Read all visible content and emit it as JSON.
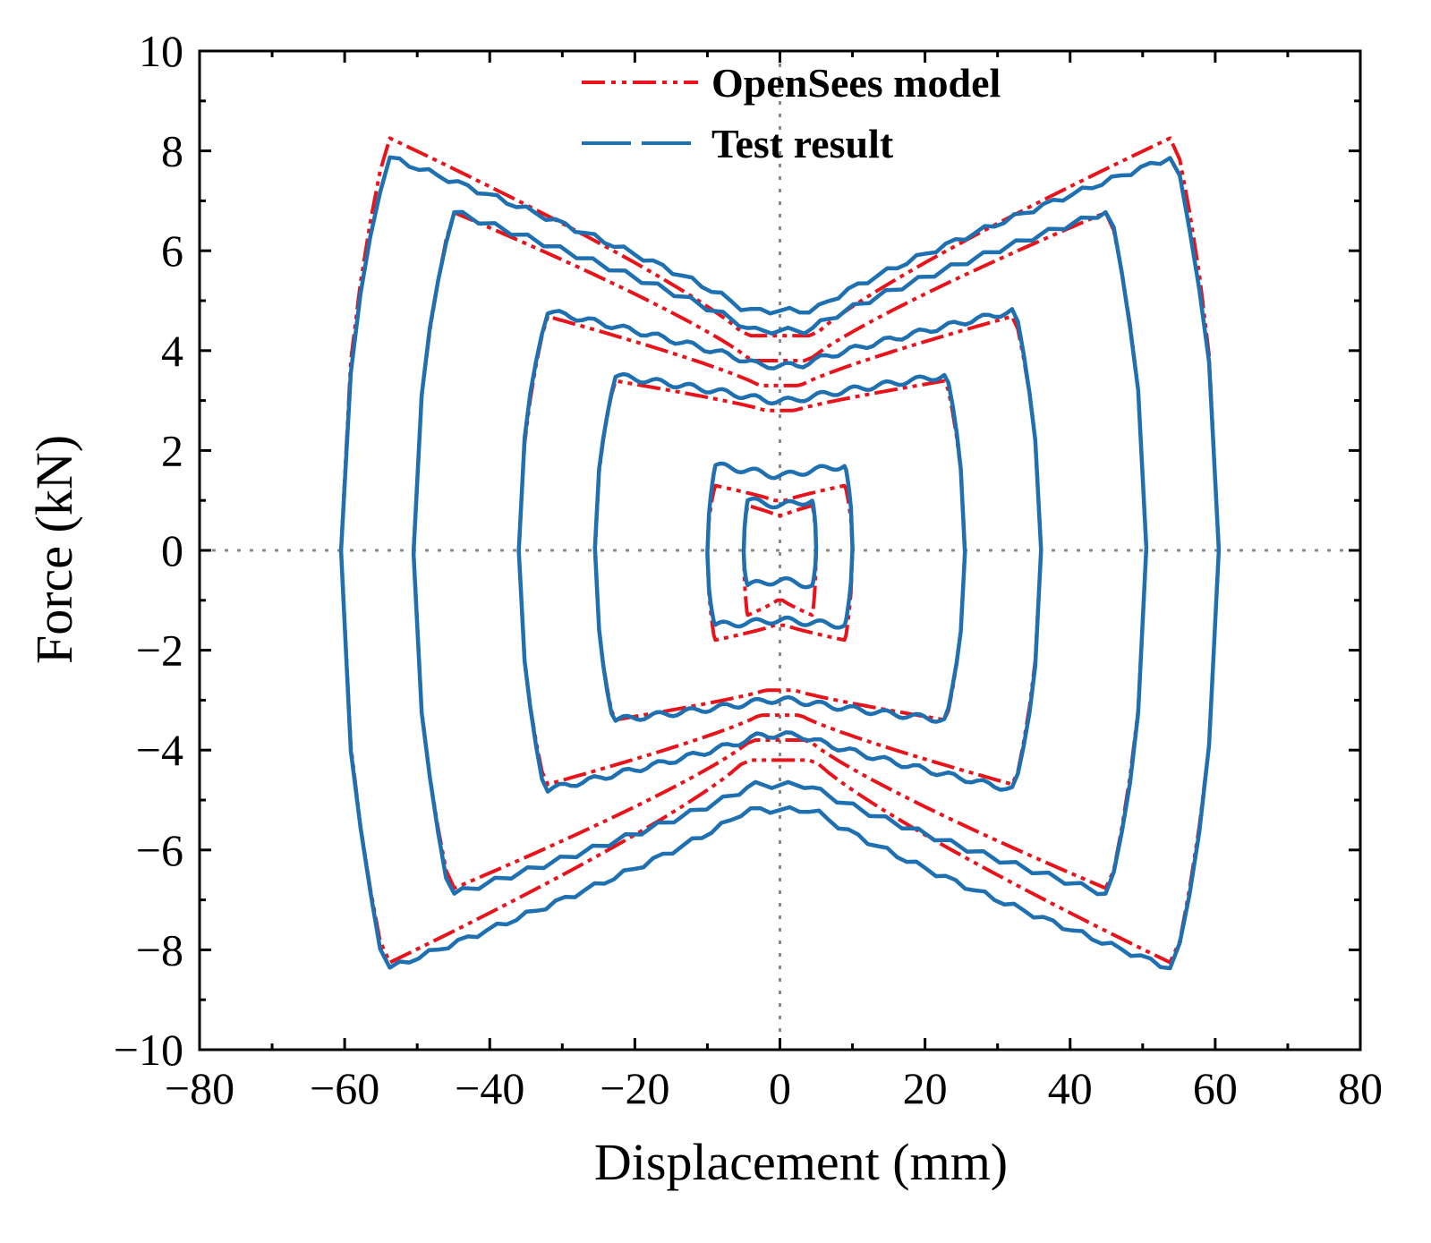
{
  "chart_data": {
    "type": "line",
    "xlabel": "Displacement (mm)",
    "ylabel": "Force (kN)",
    "xlim": [
      -80,
      80
    ],
    "ylim": [
      -10,
      10
    ],
    "xticks": [
      -80,
      -60,
      -40,
      -20,
      0,
      20,
      40,
      60,
      80
    ],
    "yticks": [
      -10,
      -8,
      -6,
      -4,
      -2,
      0,
      2,
      4,
      6,
      8,
      10
    ],
    "xtick_labels": [
      "−80",
      "−60",
      "−40",
      "−20",
      "0",
      "20",
      "40",
      "60",
      "80"
    ],
    "ytick_labels": [
      "−10",
      "−8",
      "−6",
      "−4",
      "−2",
      "0",
      "2",
      "4",
      "6",
      "8",
      "10"
    ],
    "zero_lines": true,
    "legend_position": "top-center",
    "series": [
      {
        "name": "OpenSees model",
        "color": "#e8141c",
        "style": "dash-dot-dot",
        "loops": [
          {
            "d": 60.5,
            "peak_pos": 8.3,
            "peak_neg": -8.3,
            "pinch_pos": 4.3,
            "pinch_neg": -4.2
          },
          {
            "d": 50.5,
            "peak_pos": 6.8,
            "peak_neg": -6.8,
            "pinch_pos": 3.8,
            "pinch_neg": -3.8
          },
          {
            "d": 36.0,
            "peak_pos": 4.7,
            "peak_neg": -4.7,
            "pinch_pos": 3.3,
            "pinch_neg": -3.3
          },
          {
            "d": 25.5,
            "peak_pos": 3.4,
            "peak_neg": -3.4,
            "pinch_pos": 2.8,
            "pinch_neg": -2.8
          },
          {
            "d": 10.0,
            "peak_pos": 1.3,
            "peak_neg": -1.8,
            "pinch_pos": 1.0,
            "pinch_neg": -1.5
          },
          {
            "d": 5.0,
            "peak_pos": 0.9,
            "peak_neg": -1.3,
            "pinch_pos": 0.7,
            "pinch_neg": -1.0
          }
        ]
      },
      {
        "name": "Test result",
        "color": "#1f70b0",
        "style": "long-dash",
        "loops": [
          {
            "d": 60.5,
            "peak_pos": 7.9,
            "peak_neg": -8.4,
            "pinch_pos": 4.8,
            "pinch_neg": -5.2
          },
          {
            "d": 50.5,
            "peak_pos": 6.8,
            "peak_neg": -6.9,
            "pinch_pos": 4.4,
            "pinch_neg": -4.7
          },
          {
            "d": 36.0,
            "peak_pos": 4.8,
            "peak_neg": -4.8,
            "pinch_pos": 3.7,
            "pinch_neg": -3.7
          },
          {
            "d": 25.5,
            "peak_pos": 3.5,
            "peak_neg": -3.4,
            "pinch_pos": 3.0,
            "pinch_neg": -3.0
          },
          {
            "d": 10.0,
            "peak_pos": 1.7,
            "peak_neg": -1.5,
            "pinch_pos": 1.5,
            "pinch_neg": -1.4
          },
          {
            "d": 5.0,
            "peak_pos": 1.0,
            "peak_neg": -0.7,
            "pinch_pos": 0.9,
            "pinch_neg": -0.6
          }
        ]
      }
    ]
  }
}
